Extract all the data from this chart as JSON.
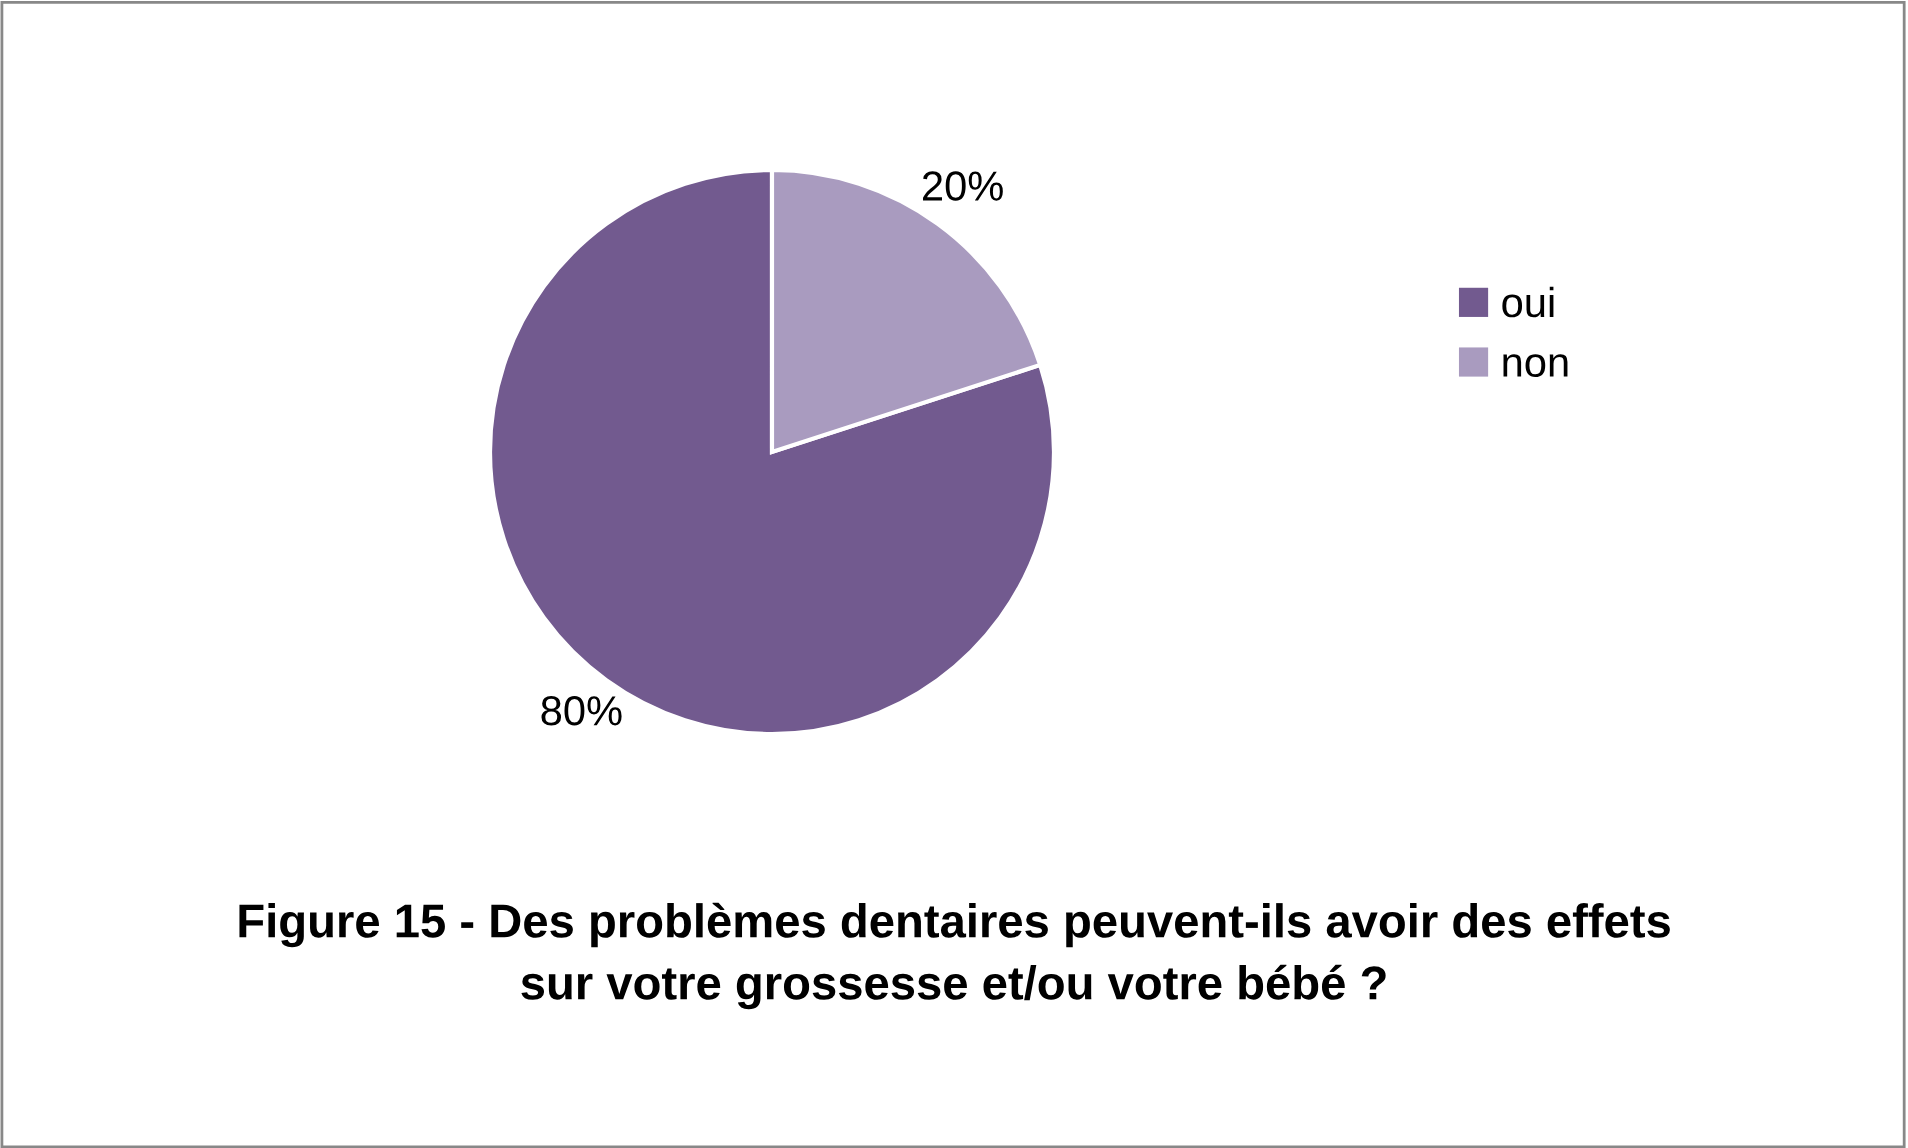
{
  "chart_data": {
    "type": "pie",
    "title": "Figure 15 - Des problèmes dentaires peuvent-ils avoir des effets\nsur votre grossesse et/ou votre bébé ?",
    "categories": [
      "oui",
      "non"
    ],
    "values": [
      80,
      20
    ],
    "colors": [
      "#725a8f",
      "#a99bbf"
    ],
    "value_labels": [
      "80%",
      "20%"
    ],
    "legend": "right"
  }
}
